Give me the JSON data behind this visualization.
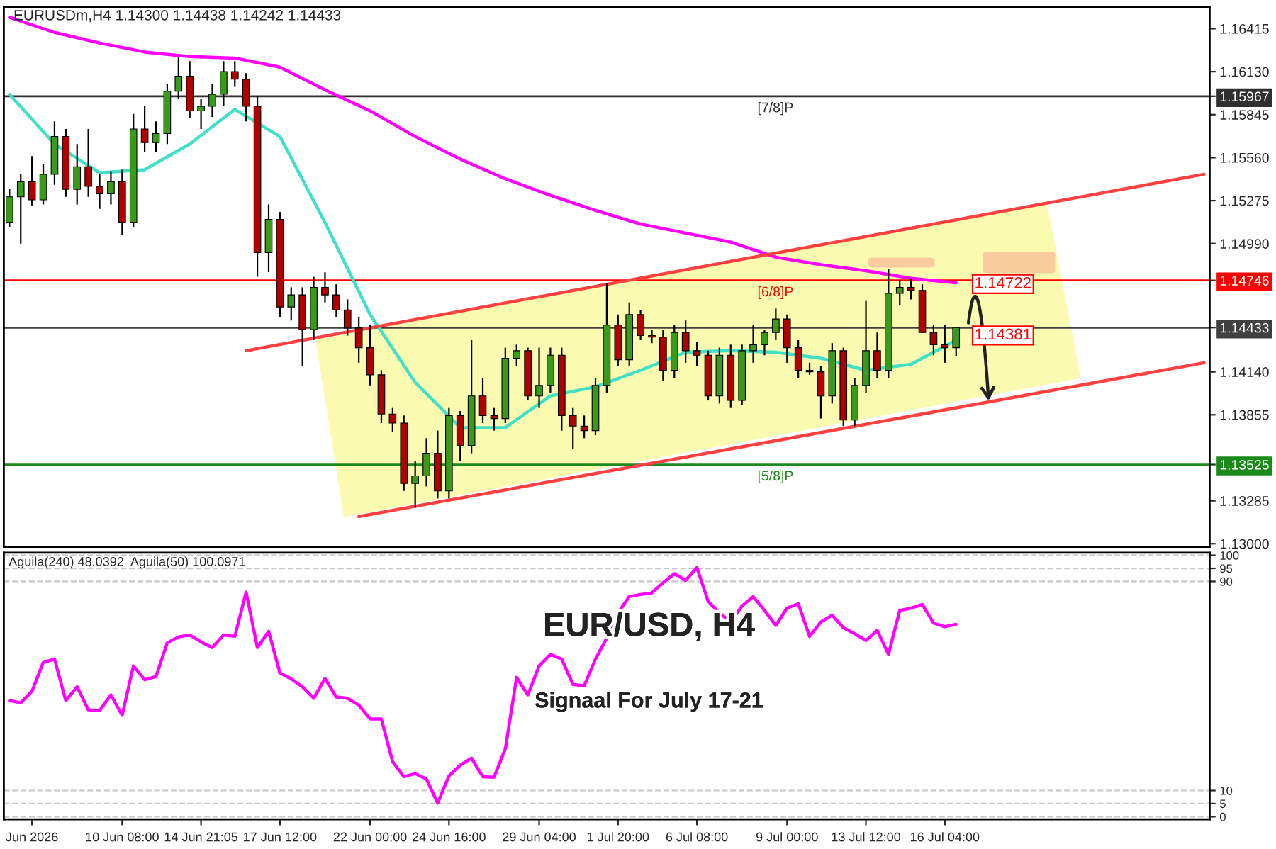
{
  "chart_data": [
    {
      "type": "candlestick",
      "title": "EURUSDm,H4 1.14300 1.14438 1.14242 1.14433",
      "categories": [
        null,
        null,
        null,
        null,
        null,
        null,
        null,
        null,
        null,
        null,
        null,
        null,
        null,
        null,
        null,
        null,
        null,
        null,
        null,
        null,
        null,
        null,
        null,
        null,
        null,
        null,
        null,
        null,
        null,
        null,
        null,
        null,
        null,
        null,
        null,
        null,
        null,
        null,
        null,
        null,
        null,
        null,
        null,
        null,
        null,
        null,
        null,
        null,
        null,
        null,
        null,
        null,
        null,
        null,
        null,
        null,
        null,
        null,
        null,
        null,
        null,
        null,
        null,
        null,
        null,
        null,
        null,
        null,
        null,
        null,
        null,
        null,
        null,
        null,
        null,
        null,
        null,
        null,
        null,
        null,
        null,
        null,
        null,
        null,
        null,
        null,
        null,
        null,
        null,
        null,
        null,
        null,
        null,
        null,
        null,
        null,
        null,
        null,
        null,
        null,
        null,
        null,
        null,
        null,
        null,
        null,
        null
      ],
      "ohlc": [
        [
          1.1513,
          1.1535,
          1.151,
          1.153
        ],
        [
          1.153,
          1.1545,
          1.1499,
          1.154
        ],
        [
          1.154,
          1.1557,
          1.1524,
          1.1528
        ],
        [
          1.1528,
          1.1552,
          1.1525,
          1.1545
        ],
        [
          1.1545,
          1.158,
          1.1538,
          1.157
        ],
        [
          1.157,
          1.1575,
          1.153,
          1.1535
        ],
        [
          1.1535,
          1.1565,
          1.1525,
          1.155
        ],
        [
          1.155,
          1.1575,
          1.153,
          1.1537
        ],
        [
          1.1537,
          1.1545,
          1.1522,
          1.1532
        ],
        [
          1.1532,
          1.1547,
          1.1525,
          1.154
        ],
        [
          1.154,
          1.1548,
          1.1505,
          1.1513
        ],
        [
          1.1513,
          1.1585,
          1.151,
          1.1575
        ],
        [
          1.1575,
          1.159,
          1.156,
          1.1566
        ],
        [
          1.1566,
          1.158,
          1.156,
          1.1572
        ],
        [
          1.1572,
          1.1605,
          1.1565,
          1.16
        ],
        [
          1.16,
          1.1623,
          1.1595,
          1.161
        ],
        [
          1.161,
          1.162,
          1.1582,
          1.1587
        ],
        [
          1.1587,
          1.1595,
          1.1575,
          1.159
        ],
        [
          1.159,
          1.1605,
          1.1583,
          1.1598
        ],
        [
          1.1598,
          1.162,
          1.159,
          1.1613
        ],
        [
          1.1613,
          1.162,
          1.1603,
          1.1608
        ],
        [
          1.1608,
          1.1612,
          1.158,
          1.159
        ],
        [
          1.159,
          1.1597,
          1.1477,
          1.1493
        ],
        [
          1.1493,
          1.1525,
          1.148,
          1.1515
        ],
        [
          1.1515,
          1.152,
          1.145,
          1.1457
        ],
        [
          1.1457,
          1.147,
          1.1448,
          1.1465
        ],
        [
          1.1465,
          1.147,
          1.1418,
          1.1442
        ],
        [
          1.1442,
          1.1477,
          1.1435,
          1.147
        ],
        [
          1.147,
          1.148,
          1.146,
          1.1465
        ],
        [
          1.1465,
          1.1472,
          1.145,
          1.1455
        ],
        [
          1.1455,
          1.1462,
          1.1438,
          1.1443
        ],
        [
          1.1443,
          1.145,
          1.142,
          1.143
        ],
        [
          1.143,
          1.1445,
          1.1405,
          1.1412
        ],
        [
          1.1412,
          1.1415,
          1.138,
          1.1386
        ],
        [
          1.1386,
          1.139,
          1.1374,
          1.138
        ],
        [
          1.138,
          1.1385,
          1.1335,
          1.134
        ],
        [
          1.134,
          1.1355,
          1.1324,
          1.1345
        ],
        [
          1.1345,
          1.137,
          1.1338,
          1.136
        ],
        [
          1.136,
          1.1375,
          1.133,
          1.1335
        ],
        [
          1.1335,
          1.139,
          1.133,
          1.1385
        ],
        [
          1.1385,
          1.1388,
          1.1355,
          1.1365
        ],
        [
          1.1365,
          1.1435,
          1.136,
          1.1398
        ],
        [
          1.1398,
          1.141,
          1.138,
          1.1385
        ],
        [
          1.1385,
          1.139,
          1.1375,
          1.1383
        ],
        [
          1.1383,
          1.143,
          1.138,
          1.1423
        ],
        [
          1.1423,
          1.1432,
          1.1418,
          1.1428
        ],
        [
          1.1428,
          1.143,
          1.1395,
          1.1398
        ],
        [
          1.1398,
          1.143,
          1.139,
          1.1405
        ],
        [
          1.1405,
          1.143,
          1.14,
          1.1425
        ],
        [
          1.1425,
          1.143,
          1.1375,
          1.1385
        ],
        [
          1.1385,
          1.139,
          1.1363,
          1.1378
        ],
        [
          1.1378,
          1.1385,
          1.137,
          1.1375
        ],
        [
          1.1375,
          1.141,
          1.1372,
          1.1405
        ],
        [
          1.1405,
          1.1473,
          1.14,
          1.1445
        ],
        [
          1.1445,
          1.1452,
          1.1418,
          1.1422
        ],
        [
          1.1422,
          1.146,
          1.1418,
          1.1452
        ],
        [
          1.1452,
          1.1455,
          1.1435,
          1.1438
        ],
        [
          1.1438,
          1.1442,
          1.1433,
          1.1437
        ],
        [
          1.1437,
          1.1442,
          1.1408,
          1.1415
        ],
        [
          1.1415,
          1.1445,
          1.141,
          1.144
        ],
        [
          1.144,
          1.1448,
          1.142,
          1.1428
        ],
        [
          1.1428,
          1.1434,
          1.1418,
          1.1425
        ],
        [
          1.1425,
          1.1428,
          1.1395,
          1.1398
        ],
        [
          1.1398,
          1.143,
          1.1393,
          1.1425
        ],
        [
          1.1425,
          1.1432,
          1.139,
          1.1395
        ],
        [
          1.1395,
          1.1432,
          1.1392,
          1.1428
        ],
        [
          1.1428,
          1.1445,
          1.142,
          1.1432
        ],
        [
          1.1432,
          1.1442,
          1.1425,
          1.144
        ],
        [
          1.144,
          1.1456,
          1.1435,
          1.1449
        ],
        [
          1.1449,
          1.1452,
          1.142,
          1.143
        ],
        [
          1.143,
          1.1435,
          1.141,
          1.1415
        ],
        [
          1.1415,
          1.142,
          1.1412,
          1.1414
        ],
        [
          1.1414,
          1.1418,
          1.1383,
          1.1398
        ],
        [
          1.1398,
          1.1433,
          1.1393,
          1.1428
        ],
        [
          1.1428,
          1.143,
          1.1378,
          1.1382
        ],
        [
          1.1382,
          1.141,
          1.1378,
          1.1405
        ],
        [
          1.1405,
          1.1461,
          1.14,
          1.1428
        ],
        [
          1.1428,
          1.144,
          1.141,
          1.1415
        ],
        [
          1.1415,
          1.1482,
          1.141,
          1.1466
        ],
        [
          1.1466,
          1.1475,
          1.1458,
          1.147
        ],
        [
          1.147,
          1.1476,
          1.1462,
          1.1468
        ],
        [
          1.1468,
          1.1472,
          1.144,
          1.144
        ],
        [
          1.144,
          1.1445,
          1.1425,
          1.1432
        ],
        [
          1.1432,
          1.1445,
          1.142,
          1.143
        ],
        [
          1.143,
          1.14438,
          1.14242,
          1.14433
        ],
        null,
        null,
        null,
        null,
        null,
        null,
        null,
        null,
        null,
        null,
        null,
        null,
        null,
        null,
        null,
        null,
        null,
        null,
        null,
        null,
        null,
        null
      ],
      "series": [
        {
          "type": "line",
          "color": "#ff00ff",
          "values": [
            1.1649,
            null,
            null,
            null,
            1.1639,
            null,
            null,
            null,
            1.1632,
            null,
            null,
            null,
            1.1626,
            null,
            null,
            null,
            1.1623,
            null,
            null,
            null,
            1.1622,
            null,
            null,
            null,
            1.1616,
            null,
            null,
            null,
            1.1601,
            null,
            null,
            null,
            1.1587,
            null,
            null,
            null,
            1.157,
            null,
            null,
            null,
            1.1555,
            null,
            null,
            null,
            1.1542,
            null,
            null,
            null,
            1.1531,
            null,
            null,
            null,
            1.1521,
            null,
            null,
            null,
            1.1512,
            null,
            null,
            null,
            1.1506,
            null,
            null,
            null,
            1.15,
            null,
            null,
            null,
            1.149,
            null,
            null,
            null,
            1.1485,
            null,
            null,
            null,
            1.1481,
            null,
            null,
            null,
            1.1476,
            null,
            null,
            null,
            1.1473,
            null,
            null,
            null,
            null,
            null,
            null,
            null,
            null,
            null,
            null,
            null,
            null,
            null,
            null,
            null,
            null,
            null,
            null,
            null,
            null,
            null,
            null
          ]
        },
        {
          "type": "line",
          "color": "#40e0c8",
          "values": [
            1.1598,
            null,
            null,
            null,
            1.1565,
            null,
            null,
            null,
            1.1546,
            null,
            null,
            null,
            1.1548,
            null,
            null,
            null,
            1.1565,
            null,
            null,
            null,
            1.1588,
            null,
            null,
            null,
            1.157,
            null,
            null,
            null,
            1.1513,
            null,
            null,
            null,
            1.1452,
            null,
            null,
            null,
            1.1407,
            null,
            null,
            null,
            1.1377,
            null,
            null,
            null,
            1.1377,
            null,
            null,
            null,
            1.1398,
            null,
            null,
            null,
            1.1404,
            null,
            null,
            null,
            1.1415,
            null,
            null,
            null,
            1.1427,
            null,
            null,
            null,
            1.1428,
            null,
            null,
            null,
            1.1427,
            null,
            null,
            null,
            1.1423,
            null,
            null,
            null,
            1.1415,
            null,
            null,
            null,
            1.1419,
            null,
            null,
            null,
            1.1435,
            null,
            null,
            null,
            null,
            null,
            null,
            null,
            null,
            null,
            null,
            null,
            null,
            null,
            null,
            null,
            null,
            null,
            null,
            null,
            null,
            null,
            null
          ]
        },
        {
          "type": "line",
          "color": "#ff4040",
          "values": [
            null,
            null,
            null,
            null,
            null,
            null,
            null,
            null,
            null,
            null,
            null,
            null,
            null,
            null,
            null,
            null,
            null,
            null,
            null,
            null,
            null,
            1.1428,
            null,
            null,
            null,
            null,
            null,
            null,
            null,
            null,
            null,
            null,
            null,
            null,
            null,
            null,
            null,
            null,
            null,
            null,
            null,
            null,
            null,
            null,
            null,
            null,
            null,
            null,
            null,
            null,
            null,
            null,
            null,
            null,
            null,
            null,
            null,
            null,
            null,
            null,
            null,
            null,
            null,
            null,
            null,
            null,
            null,
            null,
            null,
            null,
            null,
            null,
            null,
            null,
            null,
            null,
            null,
            null,
            null,
            null,
            null,
            null,
            null,
            null,
            null,
            null,
            null,
            null,
            null,
            null,
            null,
            null,
            null,
            null,
            null,
            null,
            null,
            null,
            null,
            null,
            null,
            null,
            null,
            null,
            null,
            null,
            1.1545
          ]
        },
        {
          "type": "line",
          "color": "#ff4040",
          "values": [
            null,
            null,
            null,
            null,
            null,
            null,
            null,
            null,
            null,
            null,
            null,
            null,
            null,
            null,
            null,
            null,
            null,
            null,
            null,
            null,
            null,
            null,
            null,
            null,
            null,
            null,
            null,
            null,
            null,
            null,
            null,
            1.1318,
            null,
            null,
            null,
            null,
            null,
            null,
            null,
            null,
            null,
            null,
            null,
            null,
            null,
            null,
            null,
            null,
            null,
            null,
            null,
            null,
            null,
            null,
            null,
            null,
            null,
            null,
            null,
            null,
            null,
            null,
            null,
            null,
            null,
            null,
            null,
            null,
            null,
            null,
            null,
            null,
            null,
            null,
            null,
            null,
            null,
            null,
            null,
            null,
            null,
            null,
            null,
            null,
            null,
            null,
            null,
            null,
            null,
            null,
            null,
            null,
            null,
            null,
            null,
            null,
            null,
            null,
            null,
            null,
            null,
            null,
            null,
            null,
            null,
            null,
            1.142
          ]
        }
      ],
      "ylim": [
        1.1298,
        1.1656
      ],
      "yticks": [
        1.16415,
        {
          "value": 1.1613,
          "label": "1.16130"
        },
        1.15967,
        1.15845,
        {
          "value": 1.1556,
          "label": "1.15560"
        },
        1.15275,
        {
          "value": 1.1499,
          "label": "1.14990"
        },
        1.14746,
        1.14433,
        {
          "value": 1.1414,
          "label": "1.14140"
        },
        1.13855,
        1.13525,
        1.13285,
        {
          "value": 1.13,
          "label": "1.13000"
        }
      ],
      "tick_labels": "y",
      "ref_lines": [
        {
          "axis": "y",
          "value": 1.15967,
          "label": "[7/8]P",
          "color": "#303030"
        },
        {
          "axis": "y",
          "value": 1.14746,
          "label": "[6/8]P",
          "color": "#ff0000"
        },
        {
          "axis": "y",
          "value": 1.14433,
          "label": null,
          "color": "#404040"
        },
        {
          "axis": "y",
          "value": 1.13525,
          "label": "[5/8]P",
          "color": "#1a8a1a"
        }
      ],
      "annotations": [
        "1.14722",
        "1.14381"
      ]
    },
    {
      "type": "line",
      "subtitle": "Aguila(240) 48.0392  Aguila(50) 100.0971",
      "categories": [
        null,
        null,
        "Jun 2026",
        null,
        null,
        null,
        null,
        null,
        null,
        null,
        "10 Jun 08:00",
        null,
        null,
        null,
        null,
        null,
        null,
        "14 Jun 21:05",
        null,
        null,
        null,
        null,
        null,
        null,
        "17 Jun 12:00",
        null,
        null,
        null,
        null,
        null,
        null,
        null,
        "22 Jun 00:00",
        null,
        null,
        null,
        null,
        null,
        null,
        "24 Jun 16:00",
        null,
        null,
        null,
        null,
        null,
        null,
        null,
        "29 Jun 04:00",
        null,
        null,
        null,
        null,
        null,
        null,
        "1 Jul 20:00",
        null,
        null,
        null,
        null,
        null,
        null,
        "6 Jul 08:00",
        null,
        null,
        null,
        null,
        null,
        null,
        null,
        "9 Jul 00:00",
        null,
        null,
        null,
        null,
        null,
        null,
        "13 Jul 12:00",
        null,
        null,
        null,
        null,
        null,
        null,
        "16 Jul 04:00",
        null,
        null,
        null,
        null,
        null,
        null,
        null,
        null,
        null,
        null,
        null,
        null,
        null,
        null,
        null,
        null,
        null,
        null,
        null,
        null,
        null,
        null,
        null
      ],
      "series": [
        {
          "color": "#ff00ff",
          "values": [
            44.4,
            43.6,
            48,
            59,
            60.3,
            44.4,
            49.7,
            40.9,
            40.6,
            46.6,
            38.8,
            57.7,
            52.4,
            53.6,
            66.5,
            68.8,
            69.5,
            66.9,
            64.7,
            69.5,
            69,
            85.9,
            64.7,
            70.9,
            55,
            52.7,
            49.7,
            45.3,
            52.9,
            45.8,
            45.3,
            42.7,
            37.4,
            37.4,
            21.1,
            15.3,
            16.5,
            14.4,
            5.2,
            15.6,
            19.7,
            22.4,
            15.3,
            15.1,
            25.9,
            53.3,
            46.6,
            57.7,
            62.1,
            60.3,
            50.6,
            50.1,
            60.3,
            68.3,
            78,
            84.2,
            85,
            85.6,
            89.5,
            93,
            90.4,
            95.3,
            82.4,
            78,
            74.5,
            80.6,
            84.2,
            78.9,
            73.2,
            79.8,
            81.5,
            69,
            74.5,
            77.1,
            72.3,
            70,
            67.4,
            71.3,
            62.1,
            78.9,
            79.8,
            81.2,
            74.1,
            72.7,
            73.6,
            null,
            null,
            null,
            null,
            null,
            null,
            null,
            null,
            null,
            null,
            null,
            null,
            null,
            null,
            null,
            null,
            null,
            null,
            null,
            null,
            null,
            null
          ]
        }
      ],
      "ylim": [
        -1,
        101
      ],
      "yticks": [
        0,
        5,
        10,
        90,
        95,
        100
      ],
      "grid": "y",
      "annotations": [
        "EUR/USD, H4",
        "Signaal For July 17-21"
      ]
    }
  ]
}
